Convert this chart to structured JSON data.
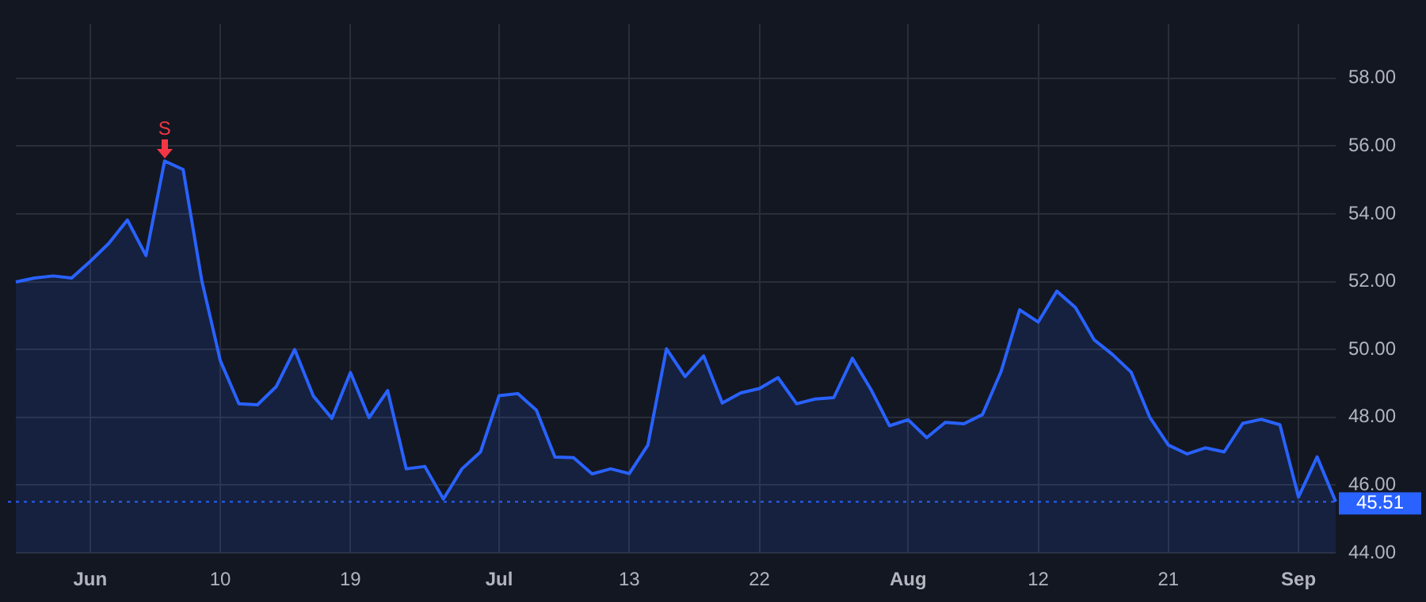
{
  "chart_data": {
    "type": "area",
    "categories": [
      null,
      null,
      null,
      null,
      "Jun",
      null,
      null,
      null,
      null,
      null,
      null,
      "10",
      null,
      null,
      null,
      null,
      null,
      null,
      "19",
      null,
      null,
      null,
      null,
      null,
      null,
      null,
      "Jul",
      null,
      null,
      null,
      null,
      null,
      null,
      "13",
      null,
      null,
      null,
      null,
      null,
      null,
      "22",
      null,
      null,
      null,
      null,
      null,
      null,
      null,
      "Aug",
      null,
      null,
      null,
      null,
      null,
      null,
      "12",
      null,
      null,
      null,
      null,
      null,
      null,
      "21",
      null,
      null,
      null,
      null,
      null,
      null,
      "Sep",
      null,
      null
    ],
    "series": [
      {
        "color": "#2962ff",
        "values": [
          51.99,
          52.11,
          52.17,
          52.11,
          52.6,
          53.13,
          53.82,
          52.77,
          55.56,
          55.31,
          52.04,
          49.67,
          48.4,
          48.37,
          48.9,
          50.0,
          48.63,
          47.97,
          49.32,
          47.99,
          48.79,
          46.48,
          46.55,
          45.59,
          46.48,
          46.98,
          48.64,
          48.7,
          48.21,
          46.83,
          46.81,
          46.33,
          46.48,
          46.34,
          47.18,
          50.02,
          49.2,
          49.81,
          48.42,
          48.72,
          48.85,
          49.17,
          48.4,
          48.54,
          48.58,
          49.74,
          48.82,
          47.75,
          47.93,
          47.4,
          47.85,
          47.81,
          48.08,
          49.35,
          51.17,
          50.81,
          51.72,
          51.24,
          50.29,
          49.85,
          49.33,
          48.0,
          47.18,
          46.92,
          47.1,
          46.98,
          47.82,
          47.94,
          47.78,
          45.65,
          46.83,
          45.51
        ]
      }
    ],
    "ylim": [
      44,
      59.6
    ],
    "yticks": [
      {
        "value": 44,
        "label": "44.00"
      },
      {
        "value": 46,
        "label": "46.00"
      },
      {
        "value": 48,
        "label": "48.00"
      },
      {
        "value": 50,
        "label": "50.00"
      },
      {
        "value": 52,
        "label": "52.00"
      },
      {
        "value": 54,
        "label": "54.00"
      },
      {
        "value": 56,
        "label": "56.00"
      },
      {
        "value": 58,
        "label": "58.00"
      }
    ],
    "grid": true,
    "legend": false,
    "marker": "none",
    "line_style": "solid",
    "ref_lines": [
      {
        "axis": "y",
        "value": 45.51,
        "label": "45.51",
        "color": "#2962ff",
        "line_style": "dotted"
      }
    ],
    "annotations": [
      {
        "text": "S",
        "y": 55.56
      }
    ]
  }
}
